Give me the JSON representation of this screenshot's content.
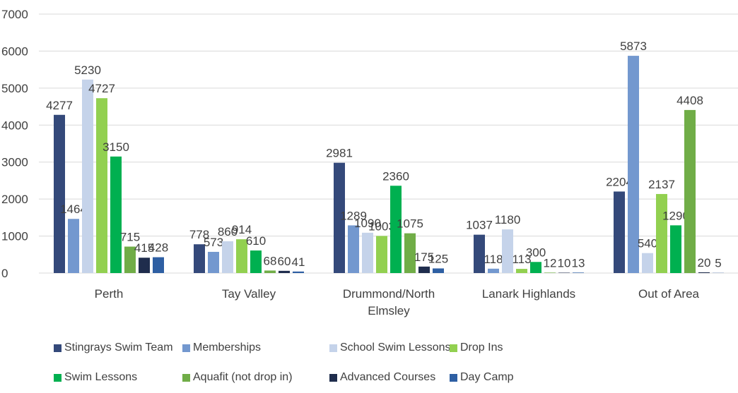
{
  "chart_data": {
    "type": "bar",
    "categories": [
      "Perth",
      "Tay Valley",
      "Drummond/North Elmsley",
      "Lanark Highlands",
      "Out of Area"
    ],
    "series": [
      {
        "name": "Stingrays Swim Team",
        "color": "#34497a",
        "values": [
          4277,
          778,
          2981,
          1037,
          2204
        ]
      },
      {
        "name": "Memberships",
        "color": "#7398cf",
        "values": [
          1464,
          573,
          1289,
          118,
          5873
        ]
      },
      {
        "name": "School Swim Lessons",
        "color": "#c5d3ea",
        "values": [
          5230,
          860,
          1090,
          1180,
          540
        ]
      },
      {
        "name": "Drop Ins",
        "color": "#92d050",
        "values": [
          4727,
          914,
          1003,
          113,
          2137
        ]
      },
      {
        "name": "Swim Lessons",
        "color": "#00b050",
        "values": [
          3150,
          610,
          2360,
          300,
          1290
        ]
      },
      {
        "name": "Aquafit (not drop in)",
        "color": "#70ad47",
        "values": [
          715,
          68,
          1075,
          12,
          4408
        ]
      },
      {
        "name": "Advanced Courses",
        "color": "#1f2d4d",
        "values": [
          415,
          60,
          175,
          10,
          20
        ]
      },
      {
        "name": "Day Camp",
        "color": "#2e5fa3",
        "values": [
          428,
          41,
          125,
          13,
          5
        ]
      }
    ],
    "ylim": [
      0,
      7000
    ],
    "yticks": [
      0,
      1000,
      2000,
      3000,
      4000,
      5000,
      6000,
      7000
    ],
    "grid": true
  }
}
